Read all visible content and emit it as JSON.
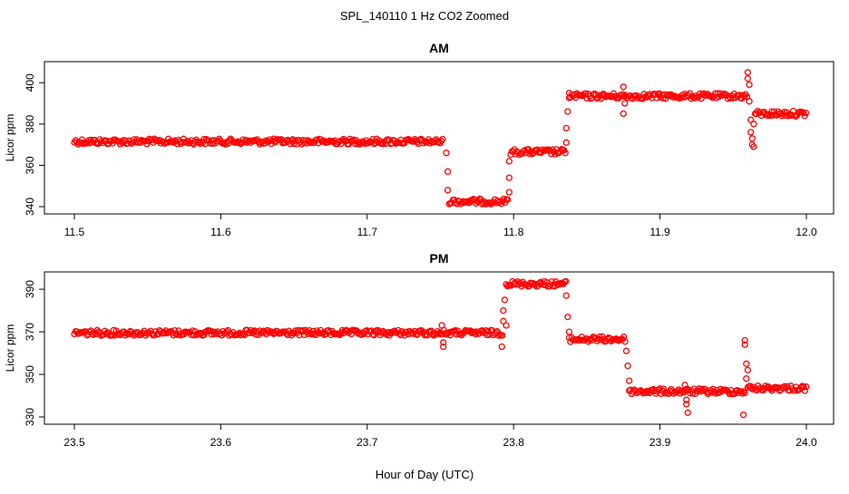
{
  "figure": {
    "title": "SPL_140110  1 Hz CO2 Zoomed",
    "xlabel": "Hour of Day (UTC)"
  },
  "colors": {
    "points": "#ff0000",
    "axis": "#000000"
  },
  "chart_data": [
    {
      "type": "scatter",
      "title": "AM",
      "xlabel": "Hour of Day (UTC)",
      "ylabel": "Licor ppm",
      "xlim": [
        11.5,
        12.0
      ],
      "ylim": [
        340,
        408
      ],
      "x_ticks": [
        "11.5",
        "11.6",
        "11.7",
        "11.8",
        "11.9",
        "12.0"
      ],
      "y_ticks": [
        "340",
        "360",
        "380",
        "400"
      ],
      "grid": false,
      "segments": [
        {
          "x_start": 11.5,
          "x_end": 11.752,
          "y": 371.5
        },
        {
          "x_start": 11.756,
          "x_end": 11.796,
          "y": 342.5
        },
        {
          "x_start": 11.798,
          "x_end": 11.836,
          "y": 366.5
        },
        {
          "x_start": 11.838,
          "x_end": 11.96,
          "y": 393.5
        },
        {
          "x_start": 11.965,
          "x_end": 12.0,
          "y": 385
        }
      ],
      "outliers": [
        {
          "x": 11.754,
          "y": 366
        },
        {
          "x": 11.755,
          "y": 357
        },
        {
          "x": 11.755,
          "y": 348
        },
        {
          "x": 11.797,
          "y": 347
        },
        {
          "x": 11.797,
          "y": 354
        },
        {
          "x": 11.797,
          "y": 362
        },
        {
          "x": 11.836,
          "y": 371
        },
        {
          "x": 11.836,
          "y": 378
        },
        {
          "x": 11.837,
          "y": 386
        },
        {
          "x": 11.838,
          "y": 395
        },
        {
          "x": 11.875,
          "y": 398
        },
        {
          "x": 11.875,
          "y": 385
        },
        {
          "x": 11.876,
          "y": 390
        },
        {
          "x": 11.96,
          "y": 405
        },
        {
          "x": 11.96,
          "y": 402
        },
        {
          "x": 11.961,
          "y": 399
        },
        {
          "x": 11.961,
          "y": 391
        },
        {
          "x": 11.962,
          "y": 382
        },
        {
          "x": 11.962,
          "y": 376
        },
        {
          "x": 11.963,
          "y": 373
        },
        {
          "x": 11.963,
          "y": 370
        },
        {
          "x": 11.964,
          "y": 369
        },
        {
          "x": 11.964,
          "y": 380
        }
      ]
    },
    {
      "type": "scatter",
      "title": "PM",
      "xlabel": "Hour of Day (UTC)",
      "ylabel": "Licor ppm",
      "xlim": [
        23.5,
        24.0
      ],
      "ylim": [
        330,
        396
      ],
      "x_ticks": [
        "23.5",
        "23.6",
        "23.7",
        "23.8",
        "23.9",
        "24.0"
      ],
      "y_ticks": [
        "330",
        "350",
        "370",
        "390"
      ],
      "grid": false,
      "segments": [
        {
          "x_start": 23.5,
          "x_end": 23.793,
          "y": 369.5
        },
        {
          "x_start": 23.795,
          "x_end": 23.836,
          "y": 392.5
        },
        {
          "x_start": 23.838,
          "x_end": 23.877,
          "y": 366.5
        },
        {
          "x_start": 23.879,
          "x_end": 23.958,
          "y": 342
        },
        {
          "x_start": 23.96,
          "x_end": 24.0,
          "y": 343.5
        }
      ],
      "outliers": [
        {
          "x": 23.751,
          "y": 373
        },
        {
          "x": 23.752,
          "y": 365
        },
        {
          "x": 23.752,
          "y": 363
        },
        {
          "x": 23.792,
          "y": 363
        },
        {
          "x": 23.793,
          "y": 375
        },
        {
          "x": 23.793,
          "y": 380
        },
        {
          "x": 23.794,
          "y": 385
        },
        {
          "x": 23.795,
          "y": 373
        },
        {
          "x": 23.836,
          "y": 387
        },
        {
          "x": 23.837,
          "y": 377
        },
        {
          "x": 23.838,
          "y": 370
        },
        {
          "x": 23.877,
          "y": 361
        },
        {
          "x": 23.878,
          "y": 354
        },
        {
          "x": 23.879,
          "y": 347
        },
        {
          "x": 23.917,
          "y": 345
        },
        {
          "x": 23.918,
          "y": 338
        },
        {
          "x": 23.918,
          "y": 336
        },
        {
          "x": 23.919,
          "y": 332
        },
        {
          "x": 23.957,
          "y": 331
        },
        {
          "x": 23.958,
          "y": 366
        },
        {
          "x": 23.958,
          "y": 364
        },
        {
          "x": 23.959,
          "y": 355
        },
        {
          "x": 23.959,
          "y": 348
        },
        {
          "x": 23.96,
          "y": 352
        }
      ]
    }
  ]
}
